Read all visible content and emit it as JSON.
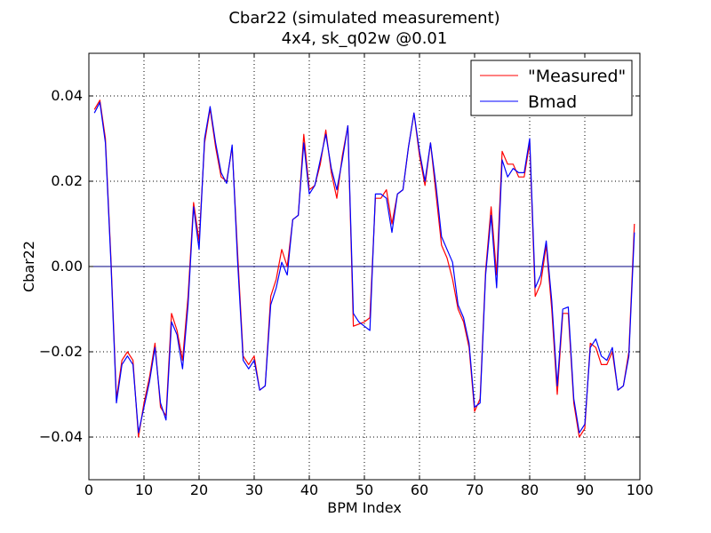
{
  "chart_data": {
    "type": "line",
    "title": "Cbar22 (simulated measurement)",
    "subtitle": "4x4, sk_q02w @0.01",
    "xlabel": "BPM Index",
    "ylabel": "Cbar22",
    "xlim": [
      0,
      100
    ],
    "ylim": [
      -0.05,
      0.05
    ],
    "xticks": [
      0,
      10,
      20,
      30,
      40,
      50,
      60,
      70,
      80,
      90,
      100
    ],
    "yticks": [
      -0.04,
      -0.02,
      0.0,
      0.02,
      0.04
    ],
    "xtick_labels": [
      "0",
      "10",
      "20",
      "30",
      "40",
      "50",
      "60",
      "70",
      "80",
      "90",
      "100"
    ],
    "ytick_labels": [
      "−0.04",
      "−0.02",
      "0.00",
      "0.02",
      "0.04"
    ],
    "grid": true,
    "legend_position": "top-right",
    "baseline": {
      "y": 0.0,
      "color": "#000080"
    },
    "x": [
      1,
      2,
      3,
      4,
      5,
      6,
      7,
      8,
      9,
      10,
      11,
      12,
      13,
      14,
      15,
      16,
      17,
      18,
      19,
      20,
      21,
      22,
      23,
      24,
      25,
      26,
      27,
      28,
      29,
      30,
      31,
      32,
      33,
      34,
      35,
      36,
      37,
      38,
      39,
      40,
      41,
      42,
      43,
      44,
      45,
      46,
      47,
      48,
      49,
      50,
      51,
      52,
      53,
      54,
      55,
      56,
      57,
      58,
      59,
      60,
      61,
      62,
      63,
      64,
      65,
      66,
      67,
      68,
      69,
      70,
      71,
      72,
      73,
      74,
      75,
      76,
      77,
      78,
      79,
      80,
      81,
      82,
      83,
      84,
      85,
      86,
      87,
      88,
      89,
      90,
      91,
      92,
      93,
      94,
      95,
      96,
      97,
      98,
      99
    ],
    "series": [
      {
        "name": "\"Measured\"",
        "color": "#ff0000",
        "values": [
          0.0368,
          0.039,
          0.03,
          0.002,
          -0.031,
          -0.022,
          -0.02,
          -0.022,
          -0.04,
          -0.032,
          -0.026,
          -0.018,
          -0.033,
          -0.035,
          -0.011,
          -0.015,
          -0.022,
          -0.007,
          0.015,
          0.006,
          0.029,
          0.037,
          0.028,
          0.021,
          0.02,
          0.028,
          0.003,
          -0.021,
          -0.023,
          -0.021,
          -0.029,
          -0.028,
          -0.007,
          -0.003,
          0.004,
          0.0,
          0.011,
          0.012,
          0.031,
          0.018,
          0.019,
          0.024,
          0.032,
          0.022,
          0.016,
          0.026,
          0.033,
          -0.014,
          -0.0135,
          -0.013,
          -0.012,
          0.016,
          0.016,
          0.018,
          0.01,
          0.017,
          0.018,
          0.028,
          0.036,
          0.026,
          0.019,
          0.029,
          0.017,
          0.005,
          0.002,
          -0.003,
          -0.01,
          -0.013,
          -0.019,
          -0.034,
          -0.031,
          -0.001,
          0.014,
          -0.002,
          0.027,
          0.024,
          0.024,
          0.021,
          0.021,
          0.029,
          -0.007,
          -0.004,
          0.005,
          -0.01,
          -0.03,
          -0.011,
          -0.011,
          -0.032,
          -0.04,
          -0.038,
          -0.018,
          -0.019,
          -0.023,
          -0.023,
          -0.02,
          -0.029,
          -0.028,
          -0.02,
          0.01
        ]
      },
      {
        "name": "Bmad",
        "color": "#0000ff",
        "values": [
          0.036,
          0.0385,
          0.029,
          0.001,
          -0.032,
          -0.023,
          -0.021,
          -0.023,
          -0.039,
          -0.033,
          -0.027,
          -0.019,
          -0.032,
          -0.036,
          -0.013,
          -0.016,
          -0.024,
          -0.009,
          0.014,
          0.004,
          0.03,
          0.0375,
          0.029,
          0.022,
          0.0195,
          0.0285,
          0.001,
          -0.022,
          -0.024,
          -0.022,
          -0.029,
          -0.028,
          -0.009,
          -0.005,
          0.001,
          -0.002,
          0.011,
          0.012,
          0.029,
          0.017,
          0.019,
          0.025,
          0.031,
          0.023,
          0.018,
          0.025,
          0.033,
          -0.011,
          -0.013,
          -0.014,
          -0.015,
          0.017,
          0.017,
          0.016,
          0.008,
          0.017,
          0.018,
          0.028,
          0.036,
          0.027,
          0.02,
          0.029,
          0.019,
          0.007,
          0.004,
          0.001,
          -0.009,
          -0.012,
          -0.018,
          -0.033,
          -0.032,
          -0.002,
          0.012,
          -0.005,
          0.025,
          0.021,
          0.023,
          0.022,
          0.022,
          0.03,
          -0.005,
          -0.002,
          0.006,
          -0.008,
          -0.028,
          -0.01,
          -0.0095,
          -0.031,
          -0.039,
          -0.037,
          -0.019,
          -0.017,
          -0.021,
          -0.022,
          -0.019,
          -0.029,
          -0.028,
          -0.021,
          0.008
        ]
      }
    ]
  }
}
